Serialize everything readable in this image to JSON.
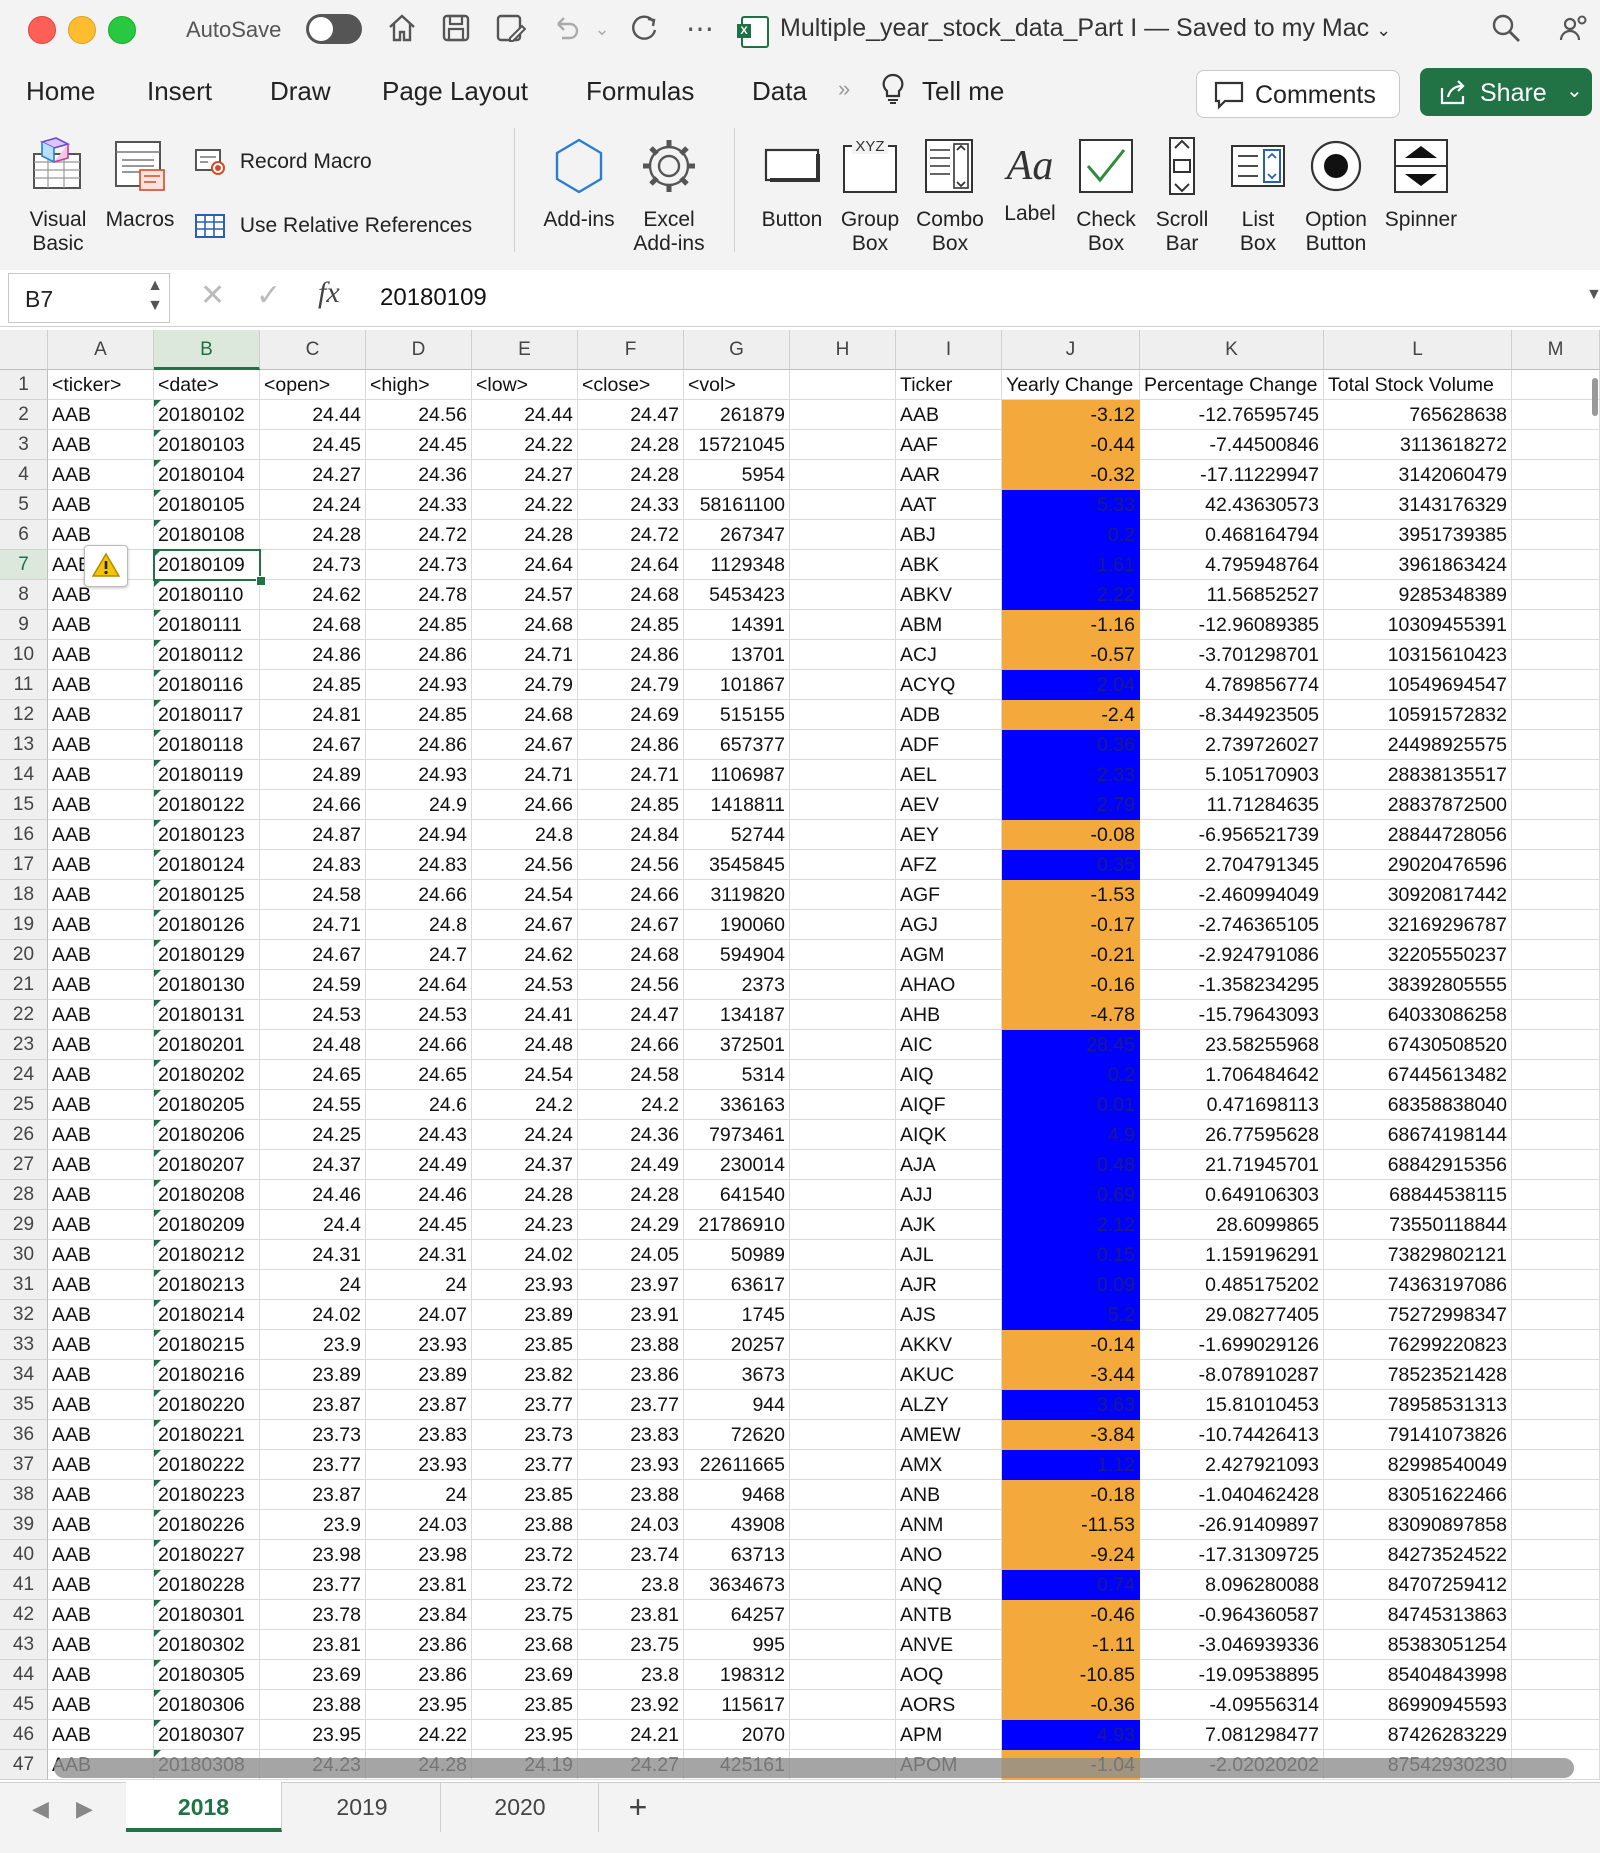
{
  "titlebar": {
    "autosave_label": "AutoSave",
    "document_title": "Multiple_year_stock_data_Part I — Saved to my Mac"
  },
  "ribbon_tabs": [
    "Home",
    "Insert",
    "Draw",
    "Page Layout",
    "Formulas",
    "Data",
    "Tell me"
  ],
  "header_buttons": {
    "comments": "Comments",
    "share": "Share"
  },
  "ribbon": {
    "visual_basic": [
      "Visual",
      "Basic"
    ],
    "macros": "Macros",
    "record_macro": "Record Macro",
    "use_relative_references": "Use Relative References",
    "addins": "Add-ins",
    "excel_addins": [
      "Excel",
      "Add-ins"
    ],
    "button": "Button",
    "group_box": [
      "Group",
      "Box"
    ],
    "combo_box": [
      "Combo",
      "Box"
    ],
    "label": "Label",
    "check_box": [
      "Check",
      "Box"
    ],
    "scroll_bar": [
      "Scroll",
      "Bar"
    ],
    "list_box": [
      "List",
      "Box"
    ],
    "option_button": [
      "Option",
      "Button"
    ],
    "spinner": "Spinner",
    "aa_glyph": "Aa",
    "xyz_glyph": "XYZ"
  },
  "formula_bar": {
    "name_box": "B7",
    "fx": "fx",
    "value": "20180109"
  },
  "selected_cell": {
    "col": "B",
    "row": 7
  },
  "columns": [
    "A",
    "B",
    "C",
    "D",
    "E",
    "F",
    "G",
    "H",
    "I",
    "J",
    "K",
    "L",
    "M"
  ],
  "header_row": [
    "<ticker>",
    "<date>",
    "<open>",
    "<high>",
    "<low>",
    "<close>",
    "<vol>",
    "",
    "Ticker",
    "Yearly Change",
    "Percentage Change",
    "Total Stock Volume"
  ],
  "colors": {
    "positive": "#0000ff",
    "negative": "#f3a93b",
    "accent": "#217346"
  },
  "rows": [
    [
      "AAB",
      "20180102",
      "24.44",
      "24.56",
      "24.44",
      "24.47",
      "261879",
      "",
      "AAB",
      "-3.12",
      "-12.76595745",
      "765628638"
    ],
    [
      "AAB",
      "20180103",
      "24.45",
      "24.45",
      "24.22",
      "24.28",
      "15721045",
      "",
      "AAF",
      "-0.44",
      "-7.44500846",
      "3113618272"
    ],
    [
      "AAB",
      "20180104",
      "24.27",
      "24.36",
      "24.27",
      "24.28",
      "5954",
      "",
      "AAR",
      "-0.32",
      "-17.11229947",
      "3142060479"
    ],
    [
      "AAB",
      "20180105",
      "24.24",
      "24.33",
      "24.22",
      "24.33",
      "58161100",
      "",
      "AAT",
      "5.33",
      "42.43630573",
      "3143176329"
    ],
    [
      "AAB",
      "20180108",
      "24.28",
      "24.72",
      "24.28",
      "24.72",
      "267347",
      "",
      "ABJ",
      "0.2",
      "0.468164794",
      "3951739385"
    ],
    [
      "AAB",
      "20180109",
      "24.73",
      "24.73",
      "24.64",
      "24.64",
      "1129348",
      "",
      "ABK",
      "1.61",
      "4.795948764",
      "3961863424"
    ],
    [
      "AAB",
      "20180110",
      "24.62",
      "24.78",
      "24.57",
      "24.68",
      "5453423",
      "",
      "ABKV",
      "2.22",
      "11.56852527",
      "9285348389"
    ],
    [
      "AAB",
      "20180111",
      "24.68",
      "24.85",
      "24.68",
      "24.85",
      "14391",
      "",
      "ABM",
      "-1.16",
      "-12.96089385",
      "10309455391"
    ],
    [
      "AAB",
      "20180112",
      "24.86",
      "24.86",
      "24.71",
      "24.86",
      "13701",
      "",
      "ACJ",
      "-0.57",
      "-3.701298701",
      "10315610423"
    ],
    [
      "AAB",
      "20180116",
      "24.85",
      "24.93",
      "24.79",
      "24.79",
      "101867",
      "",
      "ACYQ",
      "2.04",
      "4.789856774",
      "10549694547"
    ],
    [
      "AAB",
      "20180117",
      "24.81",
      "24.85",
      "24.68",
      "24.69",
      "515155",
      "",
      "ADB",
      "-2.4",
      "-8.344923505",
      "10591572832"
    ],
    [
      "AAB",
      "20180118",
      "24.67",
      "24.86",
      "24.67",
      "24.86",
      "657377",
      "",
      "ADF",
      "0.36",
      "2.739726027",
      "24498925575"
    ],
    [
      "AAB",
      "20180119",
      "24.89",
      "24.93",
      "24.71",
      "24.71",
      "1106987",
      "",
      "AEL",
      "2.33",
      "5.105170903",
      "28838135517"
    ],
    [
      "AAB",
      "20180122",
      "24.66",
      "24.9",
      "24.66",
      "24.85",
      "1418811",
      "",
      "AEV",
      "2.79",
      "11.71284635",
      "28837872500"
    ],
    [
      "AAB",
      "20180123",
      "24.87",
      "24.94",
      "24.8",
      "24.84",
      "52744",
      "",
      "AEY",
      "-0.08",
      "-6.956521739",
      "28844728056"
    ],
    [
      "AAB",
      "20180124",
      "24.83",
      "24.83",
      "24.56",
      "24.56",
      "3545845",
      "",
      "AFZ",
      "0.35",
      "2.704791345",
      "29020476596"
    ],
    [
      "AAB",
      "20180125",
      "24.58",
      "24.66",
      "24.54",
      "24.66",
      "3119820",
      "",
      "AGF",
      "-1.53",
      "-2.460994049",
      "30920817442"
    ],
    [
      "AAB",
      "20180126",
      "24.71",
      "24.8",
      "24.67",
      "24.67",
      "190060",
      "",
      "AGJ",
      "-0.17",
      "-2.746365105",
      "32169296787"
    ],
    [
      "AAB",
      "20180129",
      "24.67",
      "24.7",
      "24.62",
      "24.68",
      "594904",
      "",
      "AGM",
      "-0.21",
      "-2.924791086",
      "32205550237"
    ],
    [
      "AAB",
      "20180130",
      "24.59",
      "24.64",
      "24.53",
      "24.56",
      "2373",
      "",
      "AHAO",
      "-0.16",
      "-1.358234295",
      "38392805555"
    ],
    [
      "AAB",
      "20180131",
      "24.53",
      "24.53",
      "24.41",
      "24.47",
      "134187",
      "",
      "AHB",
      "-4.78",
      "-15.79643093",
      "64033086258"
    ],
    [
      "AAB",
      "20180201",
      "24.48",
      "24.66",
      "24.48",
      "24.66",
      "372501",
      "",
      "AIC",
      "28.45",
      "23.58255968",
      "67430508520"
    ],
    [
      "AAB",
      "20180202",
      "24.65",
      "24.65",
      "24.54",
      "24.58",
      "5314",
      "",
      "AIQ",
      "0.2",
      "1.706484642",
      "67445613482"
    ],
    [
      "AAB",
      "20180205",
      "24.55",
      "24.6",
      "24.2",
      "24.2",
      "336163",
      "",
      "AIQF",
      "0.01",
      "0.471698113",
      "68358838040"
    ],
    [
      "AAB",
      "20180206",
      "24.25",
      "24.43",
      "24.24",
      "24.36",
      "7973461",
      "",
      "AIQK",
      "4.9",
      "26.77595628",
      "68674198144"
    ],
    [
      "AAB",
      "20180207",
      "24.37",
      "24.49",
      "24.37",
      "24.49",
      "230014",
      "",
      "AJA",
      "0.48",
      "21.71945701",
      "68842915356"
    ],
    [
      "AAB",
      "20180208",
      "24.46",
      "24.46",
      "24.28",
      "24.28",
      "641540",
      "",
      "AJJ",
      "0.69",
      "0.649106303",
      "68844538115"
    ],
    [
      "AAB",
      "20180209",
      "24.4",
      "24.45",
      "24.23",
      "24.29",
      "21786910",
      "",
      "AJK",
      "2.12",
      "28.6099865",
      "73550118844"
    ],
    [
      "AAB",
      "20180212",
      "24.31",
      "24.31",
      "24.02",
      "24.05",
      "50989",
      "",
      "AJL",
      "0.15",
      "1.159196291",
      "73829802121"
    ],
    [
      "AAB",
      "20180213",
      "24",
      "24",
      "23.93",
      "23.97",
      "63617",
      "",
      "AJR",
      "0.09",
      "0.485175202",
      "74363197086"
    ],
    [
      "AAB",
      "20180214",
      "24.02",
      "24.07",
      "23.89",
      "23.91",
      "1745",
      "",
      "AJS",
      "5.2",
      "29.08277405",
      "75272998347"
    ],
    [
      "AAB",
      "20180215",
      "23.9",
      "23.93",
      "23.85",
      "23.88",
      "20257",
      "",
      "AKKV",
      "-0.14",
      "-1.699029126",
      "76299220823"
    ],
    [
      "AAB",
      "20180216",
      "23.89",
      "23.89",
      "23.82",
      "23.86",
      "3673",
      "",
      "AKUC",
      "-3.44",
      "-8.078910287",
      "78523521428"
    ],
    [
      "AAB",
      "20180220",
      "23.87",
      "23.87",
      "23.77",
      "23.77",
      "944",
      "",
      "ALZY",
      "3.63",
      "15.81010453",
      "78958531313"
    ],
    [
      "AAB",
      "20180221",
      "23.73",
      "23.83",
      "23.73",
      "23.83",
      "72620",
      "",
      "AMEW",
      "-3.84",
      "-10.74426413",
      "79141073826"
    ],
    [
      "AAB",
      "20180222",
      "23.77",
      "23.93",
      "23.77",
      "23.93",
      "22611665",
      "",
      "AMX",
      "1.12",
      "2.427921093",
      "82998540049"
    ],
    [
      "AAB",
      "20180223",
      "23.87",
      "24",
      "23.85",
      "23.88",
      "9468",
      "",
      "ANB",
      "-0.18",
      "-1.040462428",
      "83051622466"
    ],
    [
      "AAB",
      "20180226",
      "23.9",
      "24.03",
      "23.88",
      "24.03",
      "43908",
      "",
      "ANM",
      "-11.53",
      "-26.91409897",
      "83090897858"
    ],
    [
      "AAB",
      "20180227",
      "23.98",
      "23.98",
      "23.72",
      "23.74",
      "63713",
      "",
      "ANO",
      "-9.24",
      "-17.31309725",
      "84273524522"
    ],
    [
      "AAB",
      "20180228",
      "23.77",
      "23.81",
      "23.72",
      "23.8",
      "3634673",
      "",
      "ANQ",
      "0.74",
      "8.096280088",
      "84707259412"
    ],
    [
      "AAB",
      "20180301",
      "23.78",
      "23.84",
      "23.75",
      "23.81",
      "64257",
      "",
      "ANTB",
      "-0.46",
      "-0.964360587",
      "84745313863"
    ],
    [
      "AAB",
      "20180302",
      "23.81",
      "23.86",
      "23.68",
      "23.75",
      "995",
      "",
      "ANVE",
      "-1.11",
      "-3.046939336",
      "85383051254"
    ],
    [
      "AAB",
      "20180305",
      "23.69",
      "23.86",
      "23.69",
      "23.8",
      "198312",
      "",
      "AOQ",
      "-10.85",
      "-19.09538895",
      "85404843998"
    ],
    [
      "AAB",
      "20180306",
      "23.88",
      "23.95",
      "23.85",
      "23.92",
      "115617",
      "",
      "AORS",
      "-0.36",
      "-4.09556314",
      "86990945593"
    ],
    [
      "AAB",
      "20180307",
      "23.95",
      "24.22",
      "23.95",
      "24.21",
      "2070",
      "",
      "APM",
      "4.93",
      "7.081298477",
      "87426283229"
    ],
    [
      "AAB",
      "20180308",
      "24.23",
      "24.28",
      "24.19",
      "24.27",
      "425161",
      "",
      "APOM",
      "-1.04",
      "-2.02020202",
      "87542930230"
    ]
  ],
  "sheet_tabs": [
    "2018",
    "2019",
    "2020"
  ],
  "active_sheet": "2018",
  "add_sheet": "+"
}
